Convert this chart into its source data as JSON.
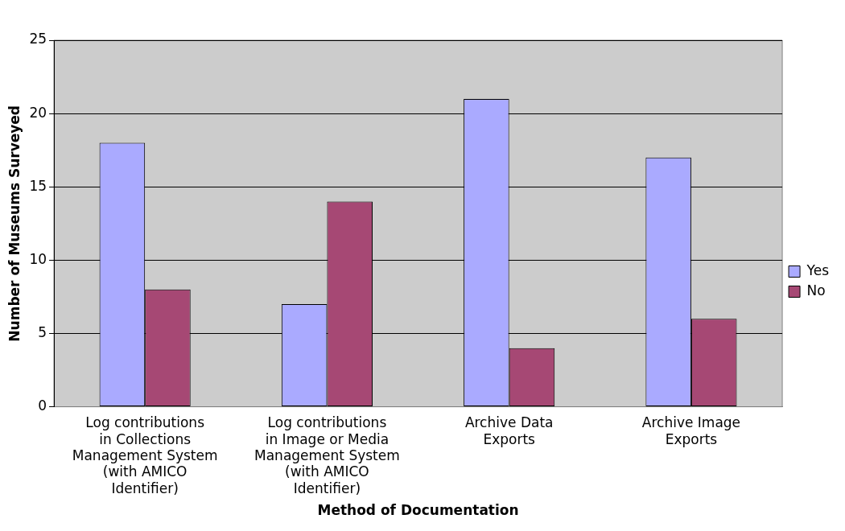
{
  "chart_data": {
    "type": "bar",
    "xlabel": "Method of Documentation",
    "ylabel": "Number of Museums Surveyed",
    "categories": [
      "Log contributions in Collections Management System (with AMICO Identifier)",
      "Log contributions in Image or Media Management System (with AMICO Identifier)",
      "Archive Data Exports",
      "Archive Image Exports"
    ],
    "series": [
      {
        "name": "Yes",
        "color": "#aaaaff",
        "values": [
          18,
          7,
          21,
          17
        ]
      },
      {
        "name": "No",
        "color": "#a64874",
        "values": [
          8,
          14,
          4,
          6
        ]
      }
    ],
    "ylim": [
      0,
      25
    ],
    "yticks": [
      0,
      5,
      10,
      15,
      20,
      25
    ],
    "grid": "y",
    "legend": "right"
  }
}
